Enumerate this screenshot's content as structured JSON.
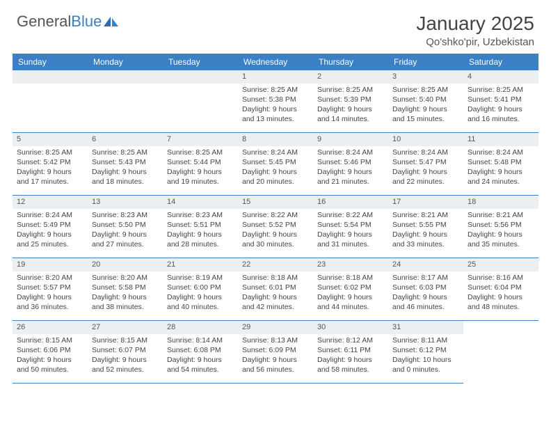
{
  "logo": {
    "text1": "General",
    "text2": "Blue"
  },
  "title": "January 2025",
  "location": "Qo'shko'pir, Uzbekistan",
  "daynames": [
    "Sunday",
    "Monday",
    "Tuesday",
    "Wednesday",
    "Thursday",
    "Friday",
    "Saturday"
  ],
  "header_bg": "#3b7fc4",
  "daynum_bg": "#eceff1",
  "border_color": "#3b7fc4",
  "first_weekday": 3,
  "days": [
    {
      "n": "1",
      "sr": "8:25 AM",
      "ss": "5:38 PM",
      "dl": "9 hours and 13 minutes."
    },
    {
      "n": "2",
      "sr": "8:25 AM",
      "ss": "5:39 PM",
      "dl": "9 hours and 14 minutes."
    },
    {
      "n": "3",
      "sr": "8:25 AM",
      "ss": "5:40 PM",
      "dl": "9 hours and 15 minutes."
    },
    {
      "n": "4",
      "sr": "8:25 AM",
      "ss": "5:41 PM",
      "dl": "9 hours and 16 minutes."
    },
    {
      "n": "5",
      "sr": "8:25 AM",
      "ss": "5:42 PM",
      "dl": "9 hours and 17 minutes."
    },
    {
      "n": "6",
      "sr": "8:25 AM",
      "ss": "5:43 PM",
      "dl": "9 hours and 18 minutes."
    },
    {
      "n": "7",
      "sr": "8:25 AM",
      "ss": "5:44 PM",
      "dl": "9 hours and 19 minutes."
    },
    {
      "n": "8",
      "sr": "8:24 AM",
      "ss": "5:45 PM",
      "dl": "9 hours and 20 minutes."
    },
    {
      "n": "9",
      "sr": "8:24 AM",
      "ss": "5:46 PM",
      "dl": "9 hours and 21 minutes."
    },
    {
      "n": "10",
      "sr": "8:24 AM",
      "ss": "5:47 PM",
      "dl": "9 hours and 22 minutes."
    },
    {
      "n": "11",
      "sr": "8:24 AM",
      "ss": "5:48 PM",
      "dl": "9 hours and 24 minutes."
    },
    {
      "n": "12",
      "sr": "8:24 AM",
      "ss": "5:49 PM",
      "dl": "9 hours and 25 minutes."
    },
    {
      "n": "13",
      "sr": "8:23 AM",
      "ss": "5:50 PM",
      "dl": "9 hours and 27 minutes."
    },
    {
      "n": "14",
      "sr": "8:23 AM",
      "ss": "5:51 PM",
      "dl": "9 hours and 28 minutes."
    },
    {
      "n": "15",
      "sr": "8:22 AM",
      "ss": "5:52 PM",
      "dl": "9 hours and 30 minutes."
    },
    {
      "n": "16",
      "sr": "8:22 AM",
      "ss": "5:54 PM",
      "dl": "9 hours and 31 minutes."
    },
    {
      "n": "17",
      "sr": "8:21 AM",
      "ss": "5:55 PM",
      "dl": "9 hours and 33 minutes."
    },
    {
      "n": "18",
      "sr": "8:21 AM",
      "ss": "5:56 PM",
      "dl": "9 hours and 35 minutes."
    },
    {
      "n": "19",
      "sr": "8:20 AM",
      "ss": "5:57 PM",
      "dl": "9 hours and 36 minutes."
    },
    {
      "n": "20",
      "sr": "8:20 AM",
      "ss": "5:58 PM",
      "dl": "9 hours and 38 minutes."
    },
    {
      "n": "21",
      "sr": "8:19 AM",
      "ss": "6:00 PM",
      "dl": "9 hours and 40 minutes."
    },
    {
      "n": "22",
      "sr": "8:18 AM",
      "ss": "6:01 PM",
      "dl": "9 hours and 42 minutes."
    },
    {
      "n": "23",
      "sr": "8:18 AM",
      "ss": "6:02 PM",
      "dl": "9 hours and 44 minutes."
    },
    {
      "n": "24",
      "sr": "8:17 AM",
      "ss": "6:03 PM",
      "dl": "9 hours and 46 minutes."
    },
    {
      "n": "25",
      "sr": "8:16 AM",
      "ss": "6:04 PM",
      "dl": "9 hours and 48 minutes."
    },
    {
      "n": "26",
      "sr": "8:15 AM",
      "ss": "6:06 PM",
      "dl": "9 hours and 50 minutes."
    },
    {
      "n": "27",
      "sr": "8:15 AM",
      "ss": "6:07 PM",
      "dl": "9 hours and 52 minutes."
    },
    {
      "n": "28",
      "sr": "8:14 AM",
      "ss": "6:08 PM",
      "dl": "9 hours and 54 minutes."
    },
    {
      "n": "29",
      "sr": "8:13 AM",
      "ss": "6:09 PM",
      "dl": "9 hours and 56 minutes."
    },
    {
      "n": "30",
      "sr": "8:12 AM",
      "ss": "6:11 PM",
      "dl": "9 hours and 58 minutes."
    },
    {
      "n": "31",
      "sr": "8:11 AM",
      "ss": "6:12 PM",
      "dl": "10 hours and 0 minutes."
    }
  ],
  "labels": {
    "sunrise": "Sunrise:",
    "sunset": "Sunset:",
    "daylight": "Daylight:"
  }
}
